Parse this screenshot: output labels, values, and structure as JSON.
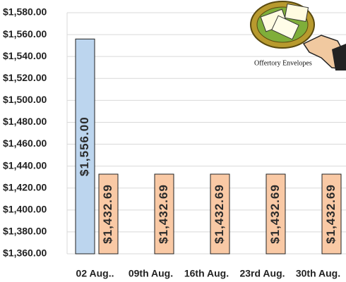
{
  "chart_data": {
    "type": "bar",
    "annotation": "Offertory Envelopes",
    "categories": [
      "02 Aug..",
      "09th Aug.",
      "16th Aug.",
      "23rd Aug.",
      "30th Aug."
    ],
    "series": [
      {
        "color": "#bcd5ee",
        "values": [
          1556,
          null,
          null,
          null,
          null
        ],
        "value_labels": [
          "$1,556.00",
          null,
          null,
          null,
          null
        ]
      },
      {
        "color": "#f9c9a5",
        "values": [
          1432.69,
          1432.69,
          1432.69,
          1432.69,
          1432.69
        ],
        "value_labels": [
          "$1,432.69",
          "$1,432.69",
          "$1,432.69",
          "$1,432.69",
          "$1,432.69"
        ]
      }
    ],
    "ylim": [
      1360,
      1580
    ],
    "yticks": [
      {
        "value": 1360,
        "label": "$1,360.00"
      },
      {
        "value": 1380,
        "label": "$1,380.00"
      },
      {
        "value": 1400,
        "label": "$1,400.00"
      },
      {
        "value": 1420,
        "label": "$1,420.00"
      },
      {
        "value": 1440,
        "label": "$1,440.00"
      },
      {
        "value": 1460,
        "label": "$1,460.00"
      },
      {
        "value": 1480,
        "label": "$1,480.00"
      },
      {
        "value": 1500,
        "label": "$1,500.00"
      },
      {
        "value": 1520,
        "label": "$1,520.00"
      },
      {
        "value": 1540,
        "label": "$1,540.00"
      },
      {
        "value": 1560,
        "label": "$1,560.00"
      },
      {
        "value": 1580,
        "label": "$1,580.00"
      }
    ],
    "grid": true
  }
}
